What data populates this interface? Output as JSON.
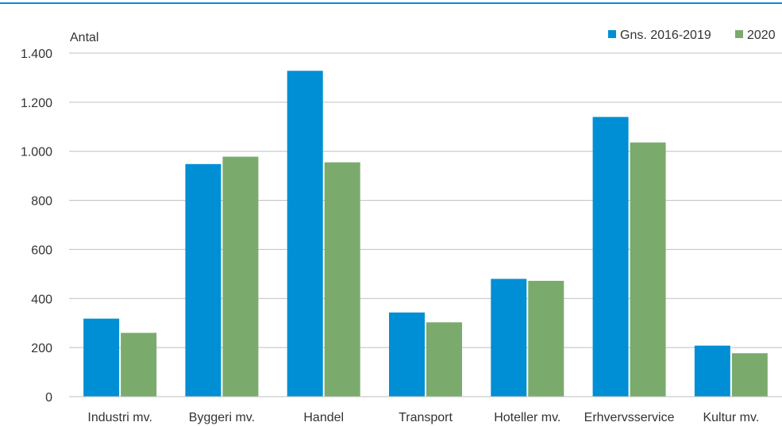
{
  "chart_data": {
    "type": "bar",
    "ylabel": "Antal",
    "ylim": [
      0,
      1400
    ],
    "yticks": [
      0,
      200,
      400,
      600,
      800,
      1000,
      1200,
      1400
    ],
    "ytick_labels": [
      "0",
      "200",
      "400",
      "600",
      "800",
      "1.000",
      "1.200",
      "1.400"
    ],
    "grid": true,
    "legend_position": "top-right",
    "categories": [
      "Industri mv.",
      "Byggeri mv.",
      "Handel",
      "Transport",
      "Hoteller mv.",
      "Erhvervsservice",
      "Kultur mv."
    ],
    "series": [
      {
        "name": "Gns. 2016-2019",
        "color": "#008fd5",
        "values": [
          318,
          948,
          1328,
          343,
          480,
          1140,
          208
        ]
      },
      {
        "name": "2020",
        "color": "#7aab6d",
        "values": [
          260,
          978,
          955,
          303,
          472,
          1036,
          177
        ]
      }
    ],
    "top_rule_color": "#008fd5"
  }
}
